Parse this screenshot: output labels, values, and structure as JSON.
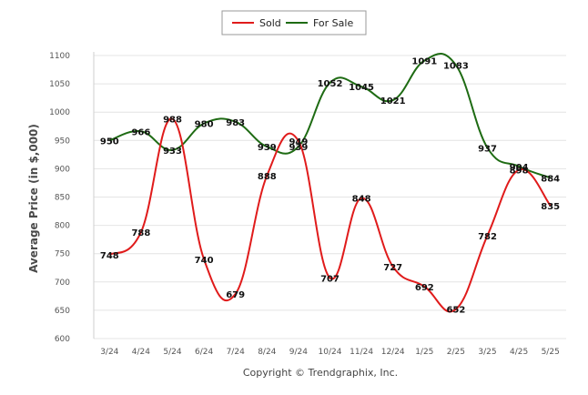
{
  "chart_data": {
    "type": "line",
    "title": "",
    "xlabel": "",
    "ylabel": "Average Price (in $,000)",
    "footer": "Copyright © Trendgraphix, Inc.",
    "categories": [
      "3/24",
      "4/24",
      "5/24",
      "6/24",
      "7/24",
      "8/24",
      "9/24",
      "10/24",
      "11/24",
      "12/24",
      "1/25",
      "2/25",
      "3/25",
      "4/25",
      "5/25"
    ],
    "y_ticks": [
      "600",
      "650",
      "700",
      "750",
      "800",
      "850",
      "900",
      "950",
      "1000",
      "1050",
      "1100"
    ],
    "ylim": [
      600,
      1100
    ],
    "grid": true,
    "legend_position": "top-center",
    "series": [
      {
        "name": "Sold",
        "color": "#e01b1b",
        "values": [
          748,
          788,
          988,
          740,
          679,
          888,
          949,
          707,
          848,
          727,
          692,
          652,
          782,
          898,
          835
        ],
        "labels": [
          "748",
          "788",
          "988",
          "740",
          "679",
          "888",
          "949",
          "707",
          "848",
          "727",
          "692",
          "652",
          "782",
          "898",
          "835"
        ]
      },
      {
        "name": "For Sale",
        "color": "#1e6b13",
        "values": [
          950,
          966,
          933,
          980,
          983,
          939,
          939,
          1052,
          1045,
          1021,
          1091,
          1083,
          937,
          904,
          884
        ],
        "labels": [
          "950",
          "966",
          "933",
          "980",
          "983",
          "939",
          "939",
          "1052",
          "1045",
          "1021",
          "1091",
          "1083",
          "937",
          "904",
          "884"
        ]
      }
    ]
  }
}
